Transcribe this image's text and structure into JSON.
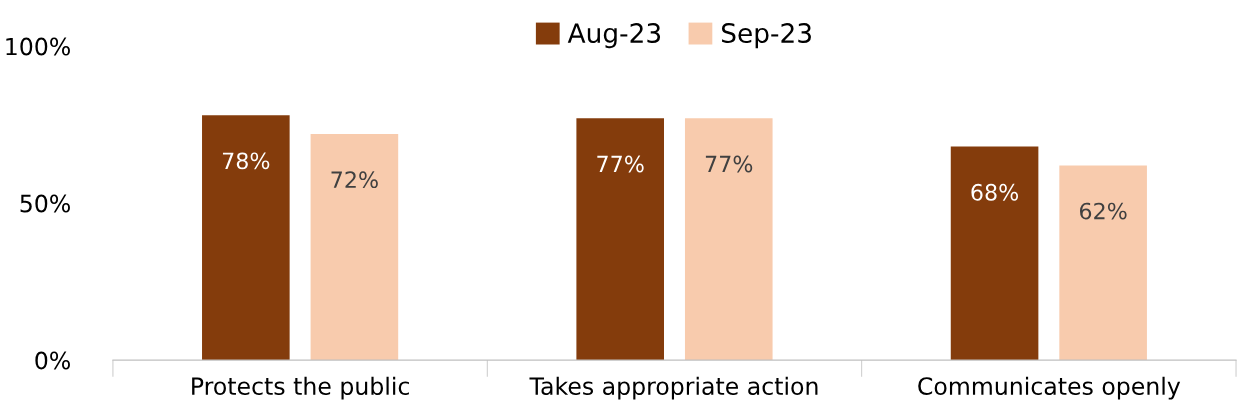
{
  "chart_data": {
    "type": "bar",
    "categories": [
      "Protects the public",
      "Takes appropriate action",
      "Communicates openly"
    ],
    "series": [
      {
        "name": "Aug-23",
        "color": "#843c0c",
        "values": [
          78,
          77,
          68
        ]
      },
      {
        "name": "Sep-23",
        "color": "#f8cbad",
        "values": [
          72,
          77,
          62
        ]
      }
    ],
    "ylim": [
      0,
      100
    ],
    "yticks": [
      {
        "value": 0,
        "label": "0%"
      },
      {
        "value": 50,
        "label": "50%"
      },
      {
        "value": 100,
        "label": "100%"
      }
    ],
    "value_labels": [
      [
        "78%",
        "77%",
        "68%"
      ],
      [
        "72%",
        "77%",
        "62%"
      ]
    ],
    "grid": false,
    "legend": "top"
  }
}
